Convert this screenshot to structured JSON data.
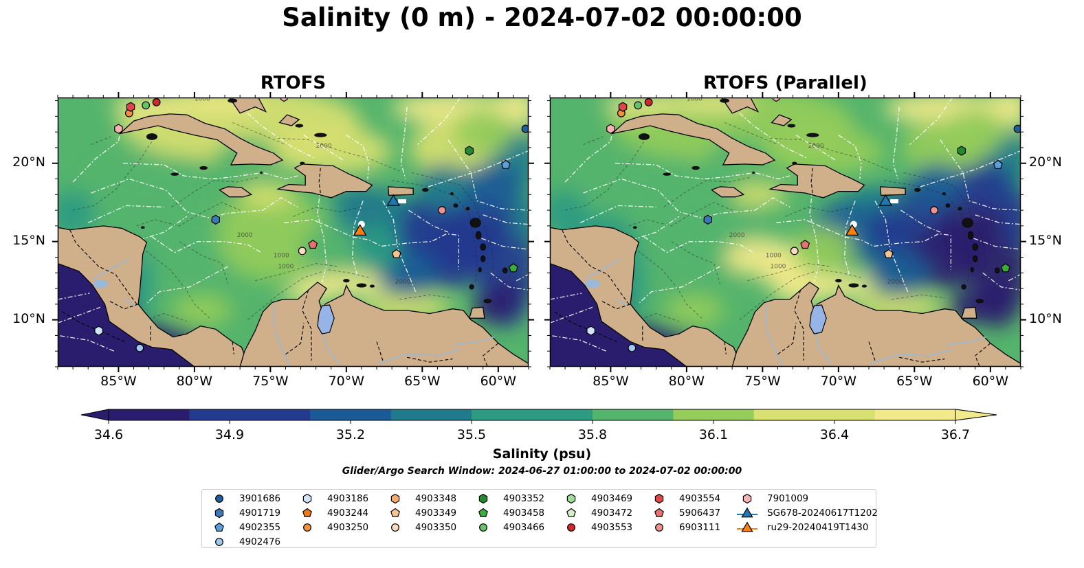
{
  "title": "Salinity (0 m) - 2024-07-02 00:00:00",
  "panels": [
    {
      "title": "RTOFS",
      "variant": "base"
    },
    {
      "title": "RTOFS (Parallel)",
      "variant": "parallel"
    }
  ],
  "map": {
    "lon_range": [
      -89,
      -58
    ],
    "lat_range": [
      7,
      24.2
    ],
    "lon_ticks": [
      {
        "value": -85,
        "label": "85°W"
      },
      {
        "value": -80,
        "label": "80°W"
      },
      {
        "value": -75,
        "label": "75°W"
      },
      {
        "value": -70,
        "label": "70°W"
      },
      {
        "value": -65,
        "label": "65°W"
      },
      {
        "value": -60,
        "label": "60°W"
      }
    ],
    "lat_ticks": [
      {
        "value": 10,
        "label": "10°N"
      },
      {
        "value": 15,
        "label": "15°N"
      },
      {
        "value": 20,
        "label": "20°N"
      }
    ],
    "colors": {
      "land": "#cfb08a",
      "lake": "#96b4e6",
      "coast": "#000000",
      "eez": "#ffffff"
    }
  },
  "colorbar": {
    "label": "Salinity (psu)",
    "min": 34.6,
    "max": 36.7,
    "ticks": [
      "34.6",
      "34.9",
      "35.2",
      "35.5",
      "35.8",
      "36.1",
      "36.4",
      "36.7"
    ],
    "colors": [
      "#2b1d6e",
      "#243a8f",
      "#1a5a96",
      "#1f7a8c",
      "#2d9a82",
      "#55b46c",
      "#95cc5a",
      "#d8e070",
      "#f2e98a"
    ]
  },
  "search_window": "Glider/Argo Search Window: 2024-06-27 01:00:00 to 2024-07-02 00:00:00",
  "legend": [
    {
      "label": "3901686",
      "marker": "circle",
      "color": "#1f5f9e",
      "lon": -58.2,
      "lat": 22.2
    },
    {
      "label": "4901719",
      "marker": "hexagon",
      "color": "#3a78b8",
      "lon": -78.6,
      "lat": 16.4
    },
    {
      "label": "4902355",
      "marker": "pentagon",
      "color": "#5aa0dc",
      "lon": -59.5,
      "lat": 19.9
    },
    {
      "label": "4902476",
      "marker": "circle",
      "color": "#9ec8ee",
      "lon": -83.6,
      "lat": 8.2
    },
    {
      "label": "4903186",
      "marker": "hexagon",
      "color": "#cfe5f8",
      "lon": -86.3,
      "lat": 9.3
    },
    {
      "label": "4903244",
      "marker": "pentagon",
      "color": "#f07814",
      "lon": null,
      "lat": null
    },
    {
      "label": "4903250",
      "marker": "circle",
      "color": "#f5913c",
      "lon": -84.3,
      "lat": 23.2
    },
    {
      "label": "4903348",
      "marker": "hexagon",
      "color": "#f7ac6a",
      "lon": null,
      "lat": null
    },
    {
      "label": "4903349",
      "marker": "pentagon",
      "color": "#f8c490",
      "lon": -66.7,
      "lat": 14.2
    },
    {
      "label": "4903350",
      "marker": "circle",
      "color": "#fcdcbc",
      "lon": -72.9,
      "lat": 14.4
    },
    {
      "label": "4903352",
      "marker": "hexagon",
      "color": "#238b2d",
      "lon": -61.9,
      "lat": 20.8
    },
    {
      "label": "4903458",
      "marker": "pentagon",
      "color": "#3caa3c",
      "lon": -59.0,
      "lat": 13.3
    },
    {
      "label": "4903466",
      "marker": "circle",
      "color": "#66c466",
      "lon": -83.2,
      "lat": 23.7
    },
    {
      "label": "4903469",
      "marker": "hexagon",
      "color": "#9ede96",
      "lon": null,
      "lat": null
    },
    {
      "label": "4903472",
      "marker": "pentagon",
      "color": "#d2f0c8",
      "lon": null,
      "lat": null
    },
    {
      "label": "4903553",
      "marker": "circle",
      "color": "#d22828",
      "lon": -82.5,
      "lat": 23.9
    },
    {
      "label": "4903554",
      "marker": "hexagon",
      "color": "#e04646",
      "lon": -84.2,
      "lat": 23.6
    },
    {
      "label": "5906437",
      "marker": "pentagon",
      "color": "#ea7070",
      "lon": -72.2,
      "lat": 14.8
    },
    {
      "label": "6903111",
      "marker": "circle",
      "color": "#f09090",
      "lon": -63.7,
      "lat": 17.0
    },
    {
      "label": "7901009",
      "marker": "hexagon",
      "color": "#fab4b4",
      "lon": -85.0,
      "lat": 22.2
    },
    {
      "label": "SG678-20240617T1202",
      "marker": "triangle",
      "color": "#1f77b4",
      "lon": -66.9,
      "lat": 17.6
    },
    {
      "label": "ru29-20240419T1430",
      "marker": "triangle",
      "color": "#ff7f0e",
      "lon": -69.1,
      "lat": 15.7
    }
  ]
}
